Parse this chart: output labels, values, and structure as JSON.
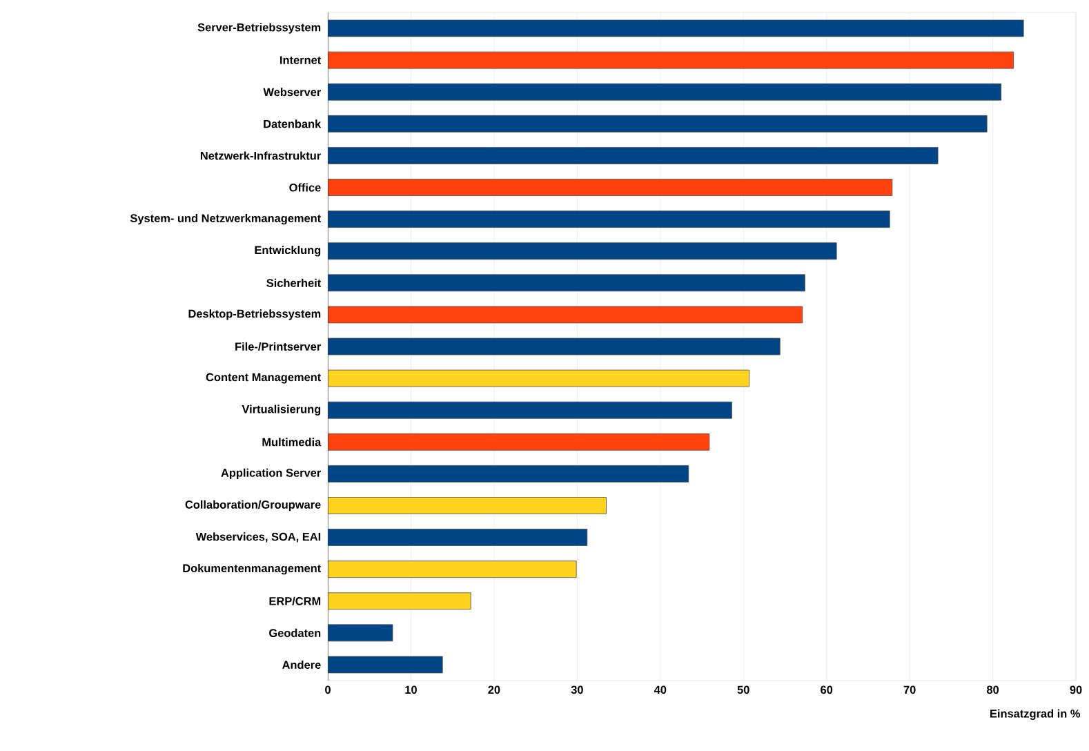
{
  "chart_data": {
    "type": "bar",
    "orientation": "horizontal",
    "xlabel": "Einsatzgrad in %",
    "categories": [
      "Server-Betriebssystem",
      "Internet",
      "Webserver",
      "Datenbank",
      "Netzwerk-Infrastruktur",
      "Office",
      "System- und Netzwerkmanagement",
      "Entwicklung",
      "Sicherheit",
      "Desktop-Betriebssystem",
      "File-/Printserver",
      "Content Management",
      "Virtualisierung",
      "Multimedia",
      "Application Server",
      "Collaboration/Groupware",
      "Webservices, SOA, EAI",
      "Dokumentenmanagement",
      "ERP/CRM",
      "Geodaten",
      "Andere"
    ],
    "values": [
      83.7,
      82.5,
      81.0,
      79.3,
      73.4,
      67.9,
      67.6,
      61.2,
      57.4,
      57.1,
      54.4,
      50.7,
      48.6,
      45.9,
      43.4,
      33.5,
      31.2,
      29.9,
      17.2,
      7.8,
      13.8
    ],
    "colors": [
      "#004586",
      "#ff420e",
      "#004586",
      "#004586",
      "#004586",
      "#ff420e",
      "#004586",
      "#004586",
      "#004586",
      "#ff420e",
      "#004586",
      "#ffd320",
      "#004586",
      "#ff420e",
      "#004586",
      "#ffd320",
      "#004586",
      "#ffd320",
      "#ffd320",
      "#004586",
      "#004586"
    ],
    "xlim": [
      0,
      90
    ],
    "xticks": [
      0,
      10,
      20,
      30,
      40,
      50,
      60,
      70,
      80,
      90
    ],
    "grid": "x"
  }
}
